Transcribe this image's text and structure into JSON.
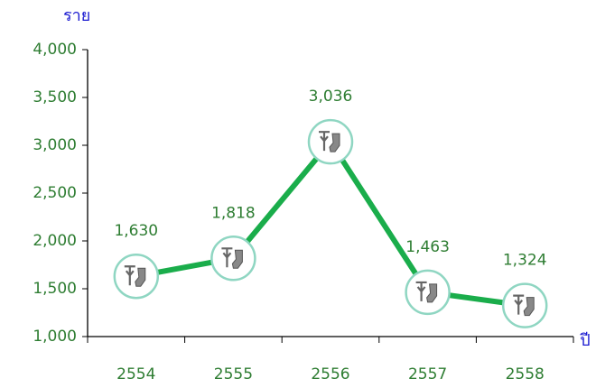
{
  "chart_data": {
    "type": "line",
    "y_label": "ราย",
    "x_label": "ปี",
    "categories": [
      "2554",
      "2555",
      "2556",
      "2557",
      "2558"
    ],
    "series": [
      {
        "name": null,
        "color": "#1aad4b",
        "values": [
          1630,
          1818,
          3036,
          1463,
          1324
        ],
        "value_labels": [
          "1,630",
          "1,818",
          "3,036",
          "1,463",
          "1,324"
        ]
      }
    ],
    "ylim": [
      1000,
      4000
    ],
    "yticks": [
      {
        "value": 1000,
        "label": "1,000"
      },
      {
        "value": 1500,
        "label": "1,500"
      },
      {
        "value": 2000,
        "label": "2,000"
      },
      {
        "value": 2500,
        "label": "2,500"
      },
      {
        "value": 3000,
        "label": "3,000"
      },
      {
        "value": 3500,
        "label": "3,500"
      },
      {
        "value": 4000,
        "label": "4,000"
      }
    ],
    "grid": false
  }
}
